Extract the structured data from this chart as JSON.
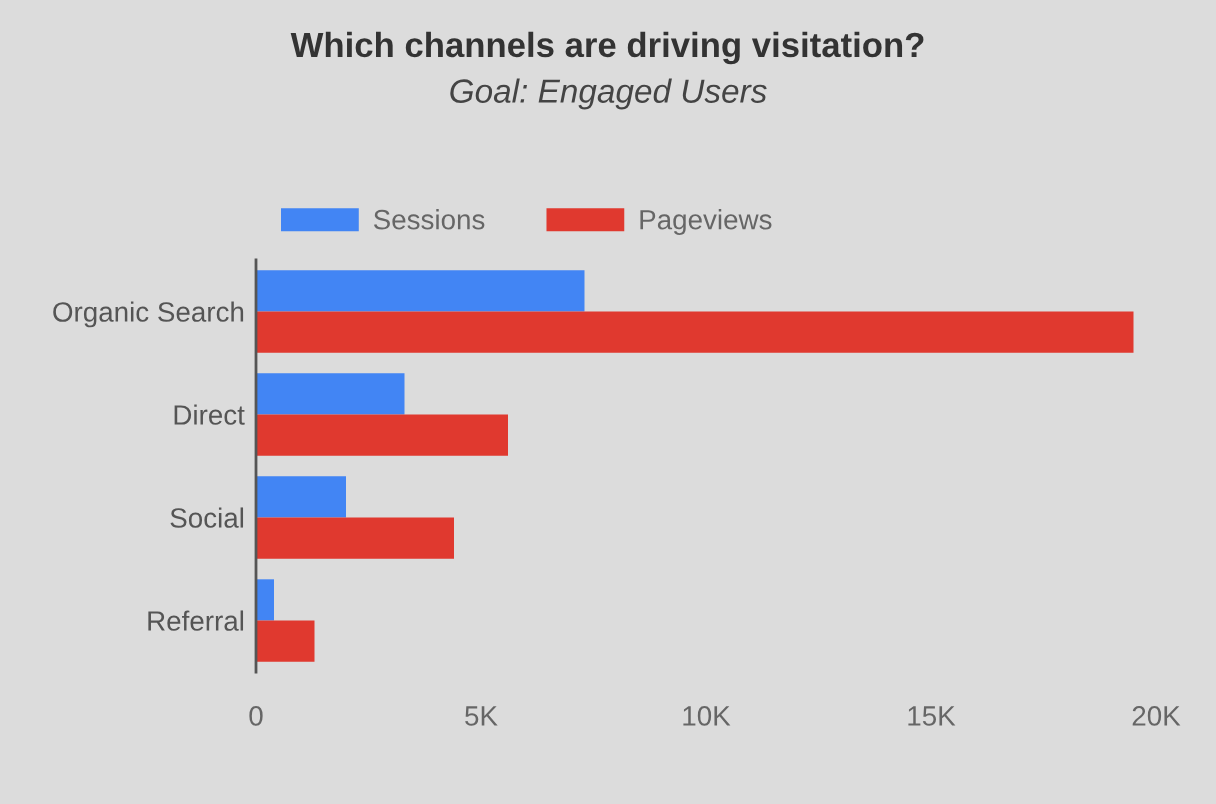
{
  "chart_data": {
    "type": "bar",
    "orientation": "horizontal",
    "title": "Which channels are driving visitation?",
    "subtitle": "Goal: Engaged Users",
    "categories": [
      "Organic Search",
      "Direct",
      "Social",
      "Referral"
    ],
    "series": [
      {
        "name": "Sessions",
        "color": "#4285f4",
        "values": [
          7300,
          3300,
          2000,
          400
        ]
      },
      {
        "name": "Pageviews",
        "color": "#e0392f",
        "values": [
          19500,
          5600,
          4400,
          1300
        ]
      }
    ],
    "xlim": [
      0,
      20000
    ],
    "xticks": [
      0,
      {
        "value": 5000,
        "label": "5K"
      },
      {
        "value": 10000,
        "label": "10K"
      },
      {
        "value": 15000,
        "label": "15K"
      },
      {
        "value": 20000,
        "label": "20K"
      }
    ],
    "grid": false,
    "legend": "top left"
  }
}
